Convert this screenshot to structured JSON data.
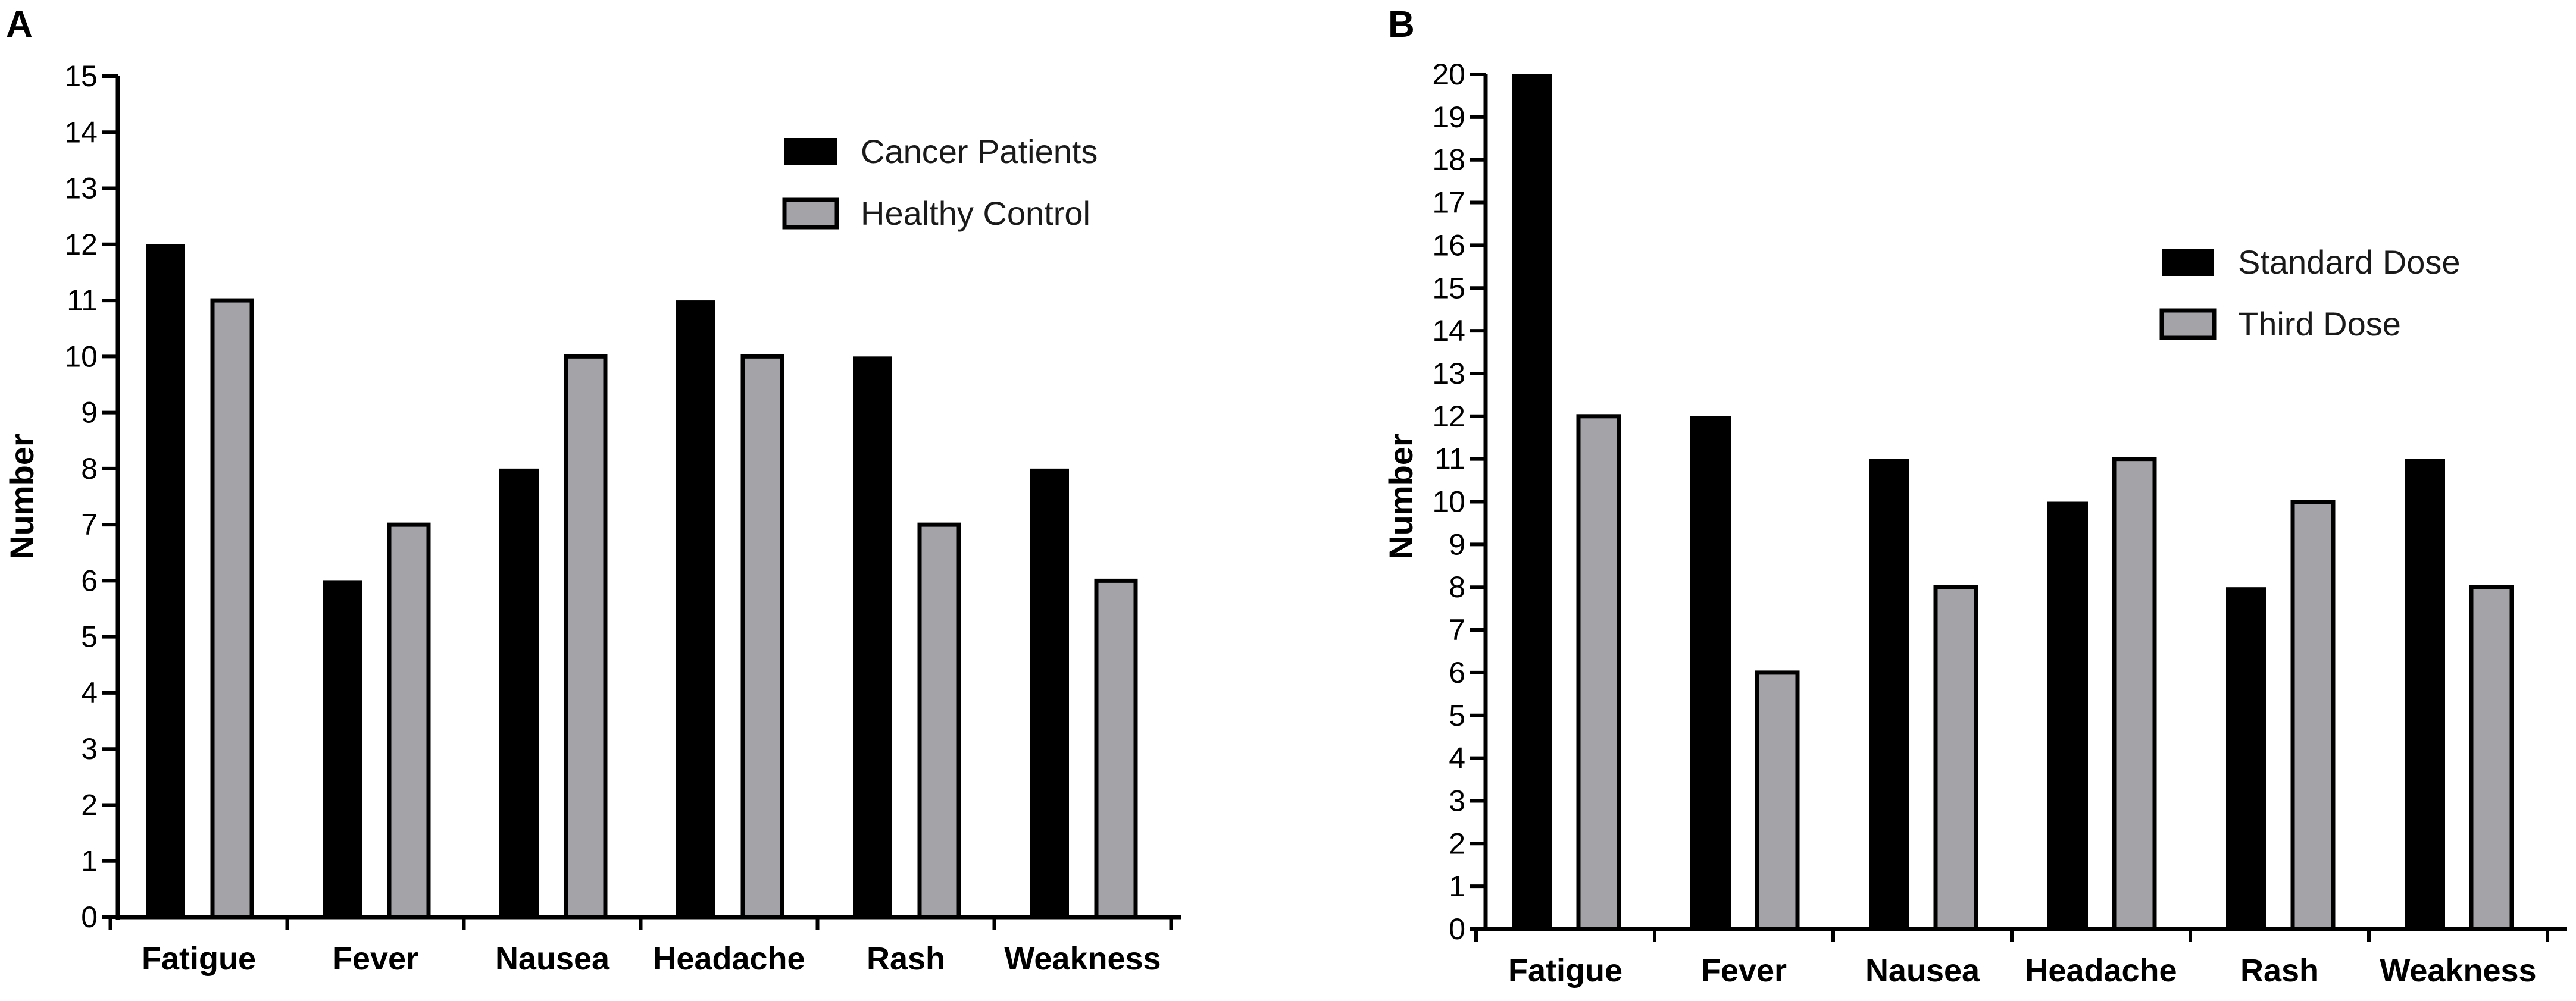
{
  "chart_data": [
    {
      "panel": "A",
      "type": "bar",
      "title": "",
      "xlabel": "",
      "ylabel": "Number",
      "ylim": [
        0,
        15
      ],
      "yticks": [
        0,
        1,
        2,
        3,
        4,
        5,
        6,
        7,
        8,
        9,
        10,
        11,
        12,
        13,
        14,
        15
      ],
      "categories": [
        "Fatigue",
        "Fever",
        "Nausea",
        "Headache",
        "Rash",
        "Weakness"
      ],
      "series": [
        {
          "name": "Cancer Patients",
          "color": "#000000",
          "values": [
            12,
            6,
            8,
            11,
            10,
            8
          ]
        },
        {
          "name": "Healthy Control",
          "color": "#a3a3a8",
          "values": [
            11,
            7,
            10,
            10,
            7,
            6
          ]
        }
      ],
      "legend": "top-right",
      "grid": false
    },
    {
      "panel": "B",
      "type": "bar",
      "title": "",
      "xlabel": "",
      "ylabel": "Number",
      "ylim": [
        0,
        20
      ],
      "yticks": [
        0,
        1,
        2,
        3,
        4,
        5,
        6,
        7,
        8,
        9,
        10,
        11,
        12,
        13,
        14,
        15,
        16,
        17,
        18,
        19,
        20
      ],
      "categories": [
        "Fatigue",
        "Fever",
        "Nausea",
        "Headache",
        "Rash",
        "Weakness"
      ],
      "series": [
        {
          "name": "Standard Dose",
          "color": "#000000",
          "values": [
            20,
            12,
            11,
            10,
            8,
            11
          ]
        },
        {
          "name": "Third Dose",
          "color": "#a3a3a8",
          "values": [
            12,
            6,
            8,
            11,
            10,
            8
          ]
        }
      ],
      "legend": "right",
      "grid": false
    }
  ]
}
